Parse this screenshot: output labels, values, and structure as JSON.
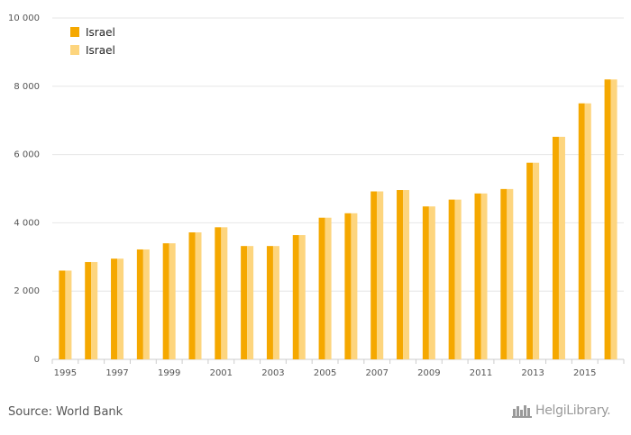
{
  "chart_data": {
    "type": "bar",
    "categories": [
      "1995",
      "1996",
      "1997",
      "1998",
      "1999",
      "2000",
      "2001",
      "2002",
      "2003",
      "2004",
      "2005",
      "2006",
      "2007",
      "2008",
      "2009",
      "2010",
      "2011",
      "2012",
      "2013",
      "2014",
      "2015",
      "2016"
    ],
    "x_tick_labels": [
      "1995",
      "1997",
      "1999",
      "2001",
      "2003",
      "2005",
      "2007",
      "2009",
      "2011",
      "2013",
      "2015"
    ],
    "y_tick_labels": [
      "0",
      "2 000",
      "4 000",
      "6 000",
      "8 000",
      "10 000"
    ],
    "ylim": [
      0,
      10000
    ],
    "y_ticks": [
      0,
      2000,
      4000,
      6000,
      8000,
      10000
    ],
    "grid": true,
    "legend_position": "top-left",
    "series": [
      {
        "name": "Israel",
        "color": "#F5A800",
        "values": [
          2600,
          2850,
          2950,
          3220,
          3400,
          3720,
          3870,
          3320,
          3320,
          3640,
          4150,
          4280,
          4920,
          4960,
          4480,
          4680,
          4860,
          4990,
          5760,
          6520,
          7500,
          8200
        ]
      },
      {
        "name": "Israel",
        "color": "#FDD57E",
        "values": [
          2600,
          2850,
          2950,
          3220,
          3400,
          3720,
          3870,
          3320,
          3320,
          3640,
          4150,
          4280,
          4920,
          4960,
          4480,
          4680,
          4860,
          4990,
          5760,
          6520,
          7500,
          8200
        ]
      }
    ],
    "xlabel": "",
    "ylabel": ""
  },
  "footer": {
    "source": "Source: World Bank",
    "logo_text": "HelgiLibrary."
  },
  "icons": {
    "logo": "city-skyline-icon"
  }
}
